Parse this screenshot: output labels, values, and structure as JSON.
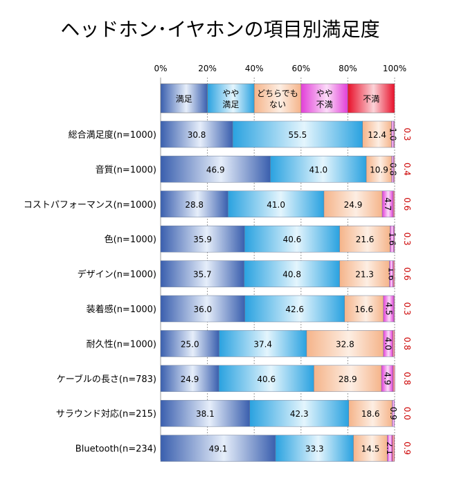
{
  "chart_data": {
    "type": "bar",
    "stacked": true,
    "orientation": "horizontal",
    "percent_stacked": true,
    "title": "ヘッドホン･イヤホンの項目別満足度",
    "xlim": [
      0,
      100
    ],
    "x_ticks": [
      "0%",
      "20%",
      "40%",
      "60%",
      "80%",
      "100%"
    ],
    "grid": true,
    "legend": {
      "placement": "top",
      "entries": [
        {
          "name": "満足",
          "lines": [
            "満足"
          ]
        },
        {
          "name": "やや満足",
          "lines": [
            "やや",
            "満足"
          ]
        },
        {
          "name": "どちらでもない",
          "lines": [
            "どちらでも",
            "ない"
          ]
        },
        {
          "name": "やや不満",
          "lines": [
            "やや",
            "不満"
          ]
        },
        {
          "name": "不満",
          "lines": [
            "不満"
          ]
        }
      ]
    },
    "categories": [
      "総合満足度(n=1000)",
      "音質(n=1000)",
      "コストパフォーマンス(n=1000)",
      "色(n=1000)",
      "デザイン(n=1000)",
      "装着感(n=1000)",
      "耐久性(n=1000)",
      "ケーブルの長さ(n=783)",
      "サラウンド対応(n=215)",
      "Bluetooth(n=234)"
    ],
    "series": [
      {
        "name": "満足",
        "values": [
          30.8,
          46.9,
          28.8,
          35.9,
          35.7,
          36.0,
          25.0,
          24.9,
          38.1,
          49.1
        ],
        "labels": [
          "30.8",
          "46.9",
          "28.8",
          "35.9",
          "35.7",
          "36.0",
          "25.0",
          "24.9",
          "38.1",
          "49.1"
        ]
      },
      {
        "name": "やや満足",
        "values": [
          55.5,
          41.0,
          41.0,
          40.6,
          40.8,
          42.6,
          37.4,
          40.6,
          42.3,
          33.3
        ],
        "labels": [
          "55.5",
          "41.0",
          "41.0",
          "40.6",
          "40.8",
          "42.6",
          "37.4",
          "40.6",
          "42.3",
          "33.3"
        ]
      },
      {
        "name": "どちらでもない",
        "values": [
          12.4,
          10.9,
          24.9,
          21.6,
          21.3,
          16.6,
          32.8,
          28.9,
          18.6,
          14.5
        ],
        "labels": [
          "12.4",
          "10.9",
          "24.9",
          "21.6",
          "21.3",
          "16.6",
          "32.8",
          "28.9",
          "18.6",
          "14.5"
        ]
      },
      {
        "name": "やや不満",
        "values": [
          1.0,
          0.8,
          4.7,
          1.6,
          1.6,
          4.5,
          4.0,
          4.9,
          0.9,
          2.1
        ],
        "labels": [
          "1.0",
          "0.8",
          "4.7",
          "1.6",
          "1.6",
          "4.5",
          "4.0",
          "4.9",
          "0.9",
          "2.1"
        ]
      },
      {
        "name": "不満",
        "values": [
          0.3,
          0.4,
          0.6,
          0.3,
          0.6,
          0.3,
          0.8,
          0.8,
          0.0,
          0.9
        ],
        "labels": [
          "0.3",
          "0.4",
          "0.6",
          "0.3",
          "0.6",
          "0.3",
          "0.8",
          "0.8",
          "0.0",
          "0.9"
        ]
      }
    ],
    "colors": {
      "series": [
        "#3a5fae",
        "#2aa2e0",
        "#f5b48a",
        "#e23fd8",
        "#e8102a"
      ],
      "series_light": [
        "#e6eefa",
        "#e4f5fd",
        "#fdeee3",
        "#fbdcf8",
        "#fbd3d8"
      ],
      "outside_label": "#cc0000"
    }
  }
}
